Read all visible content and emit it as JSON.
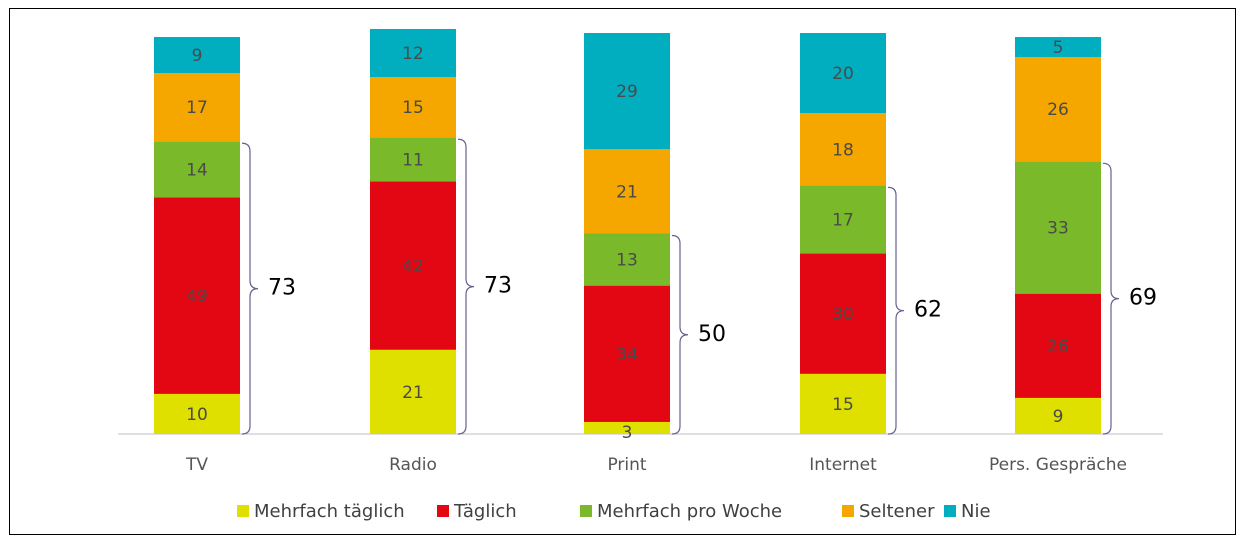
{
  "chart_data": {
    "type": "stacked_bar",
    "categories": [
      "TV",
      "Radio",
      "Print",
      "Internet",
      "Pers. Gespräche"
    ],
    "series": [
      {
        "name": "Mehrfach täglich",
        "color": "#dfe000",
        "values": [
          10,
          21,
          3,
          15,
          9
        ]
      },
      {
        "name": "Täglich",
        "color": "#e30613",
        "values": [
          49,
          42,
          34,
          30,
          26
        ]
      },
      {
        "name": "Mehrfach pro Woche",
        "color": "#7ab929",
        "values": [
          14,
          11,
          13,
          17,
          33
        ]
      },
      {
        "name": "Seltener",
        "color": "#f5a700",
        "values": [
          17,
          15,
          21,
          18,
          26
        ]
      },
      {
        "name": "Nie",
        "color": "#00aec0",
        "values": [
          9,
          12,
          29,
          20,
          5
        ]
      }
    ],
    "bracket_totals": [
      73,
      73,
      50,
      62,
      69
    ]
  }
}
